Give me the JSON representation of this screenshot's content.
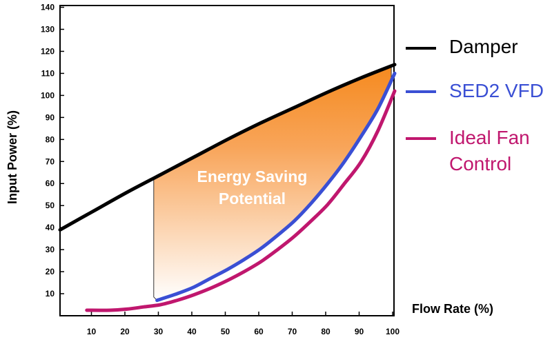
{
  "chart_data": {
    "type": "line",
    "title": "",
    "xlabel": "Flow Rate (%)",
    "ylabel": "Input Power (%)",
    "xlim": [
      0,
      100
    ],
    "ylim": [
      0,
      140
    ],
    "x_ticks": [
      10,
      20,
      30,
      40,
      50,
      60,
      70,
      80,
      90,
      100
    ],
    "y_ticks": [
      10,
      20,
      30,
      40,
      50,
      60,
      70,
      80,
      90,
      100,
      110,
      120,
      130,
      140
    ],
    "grid": false,
    "legend": {
      "placement": "right",
      "entries": [
        {
          "lines": [
            "Damper"
          ],
          "color": "#000000",
          "series": "damper"
        },
        {
          "lines": [
            "SED2 VFD"
          ],
          "color": "#3a4fd4",
          "series": "vfd"
        },
        {
          "lines": [
            "Ideal Fan",
            "Control"
          ],
          "color": "#c0176e",
          "series": "ideal"
        }
      ]
    },
    "series": [
      {
        "id": "damper",
        "name": "Damper",
        "color": "#000000",
        "x": [
          0,
          10,
          20,
          30,
          40,
          50,
          60,
          70,
          80,
          90,
          100
        ],
        "y": [
          39,
          47.5,
          56,
          64,
          72,
          80,
          87.5,
          94.5,
          101.5,
          108,
          114
        ]
      },
      {
        "id": "vfd",
        "name": "SED2 VFD",
        "color": "#3a4fd4",
        "x": [
          29,
          35,
          40,
          45,
          50,
          55,
          60,
          65,
          70,
          75,
          80,
          85,
          90,
          95,
          100
        ],
        "y": [
          7,
          10,
          13,
          17,
          21,
          25.5,
          30.5,
          36.5,
          43,
          51,
          60,
          70,
          81.5,
          94,
          110
        ]
      },
      {
        "id": "ideal",
        "name": "Ideal Fan Control",
        "color": "#c0176e",
        "x": [
          8,
          15,
          20,
          25,
          30,
          35,
          40,
          45,
          50,
          55,
          60,
          65,
          70,
          75,
          80,
          85,
          90,
          95,
          100
        ],
        "y": [
          2.5,
          2.5,
          3,
          4,
          5,
          7,
          9.5,
          12.5,
          16,
          20,
          24.5,
          30,
          36,
          43,
          50.5,
          60,
          70,
          84,
          102
        ]
      }
    ],
    "annotations": [
      {
        "lines": [
          "Energy Saving",
          "Potential"
        ],
        "at": [
          57,
          57
        ]
      }
    ],
    "shaded_region": {
      "description": "area between Damper and SED2 VFD curves",
      "x_start": 28,
      "x_end": 99,
      "color_top": "#f58a1f",
      "color_bottom": "#ffffff"
    }
  }
}
